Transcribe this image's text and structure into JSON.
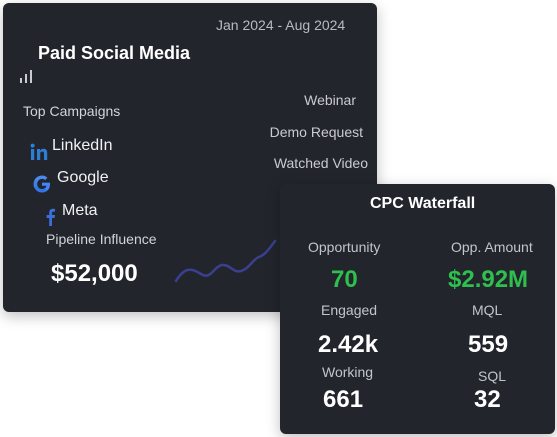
{
  "social": {
    "date_range": "Jan 2024 - Aug 2024",
    "title": "Paid Social Media",
    "top_campaigns_label": "Top Campaigns",
    "campaigns": [
      {
        "name": "LinkedIn",
        "icon": "linkedin-icon",
        "color": "#2d7fd6"
      },
      {
        "name": "Google",
        "icon": "google-icon",
        "color": "#4285f4"
      },
      {
        "name": "Meta",
        "icon": "facebook-icon",
        "color": "#3b6fd8"
      }
    ],
    "pipeline_label": "Pipeline Influence",
    "pipeline_value": "$52,000",
    "right_list": [
      "Webinar",
      "Demo Request",
      "Watched Video"
    ],
    "icons": {
      "chart": "bar-chart-icon"
    },
    "sparkline_color": "#3c3f8f"
  },
  "cpc": {
    "title": "CPC Waterfall",
    "accent_green": "#2fbf4f",
    "metrics": {
      "opportunity": {
        "label": "Opportunity",
        "value": "70"
      },
      "opp_amount": {
        "label": "Opp. Amount",
        "value": "$2.92M"
      },
      "engaged": {
        "label": "Engaged",
        "value": "2.42k"
      },
      "mql": {
        "label": "MQL",
        "value": "559"
      },
      "working": {
        "label": "Working",
        "value": "661"
      },
      "sql": {
        "label": "SQL",
        "value": "32"
      }
    }
  }
}
